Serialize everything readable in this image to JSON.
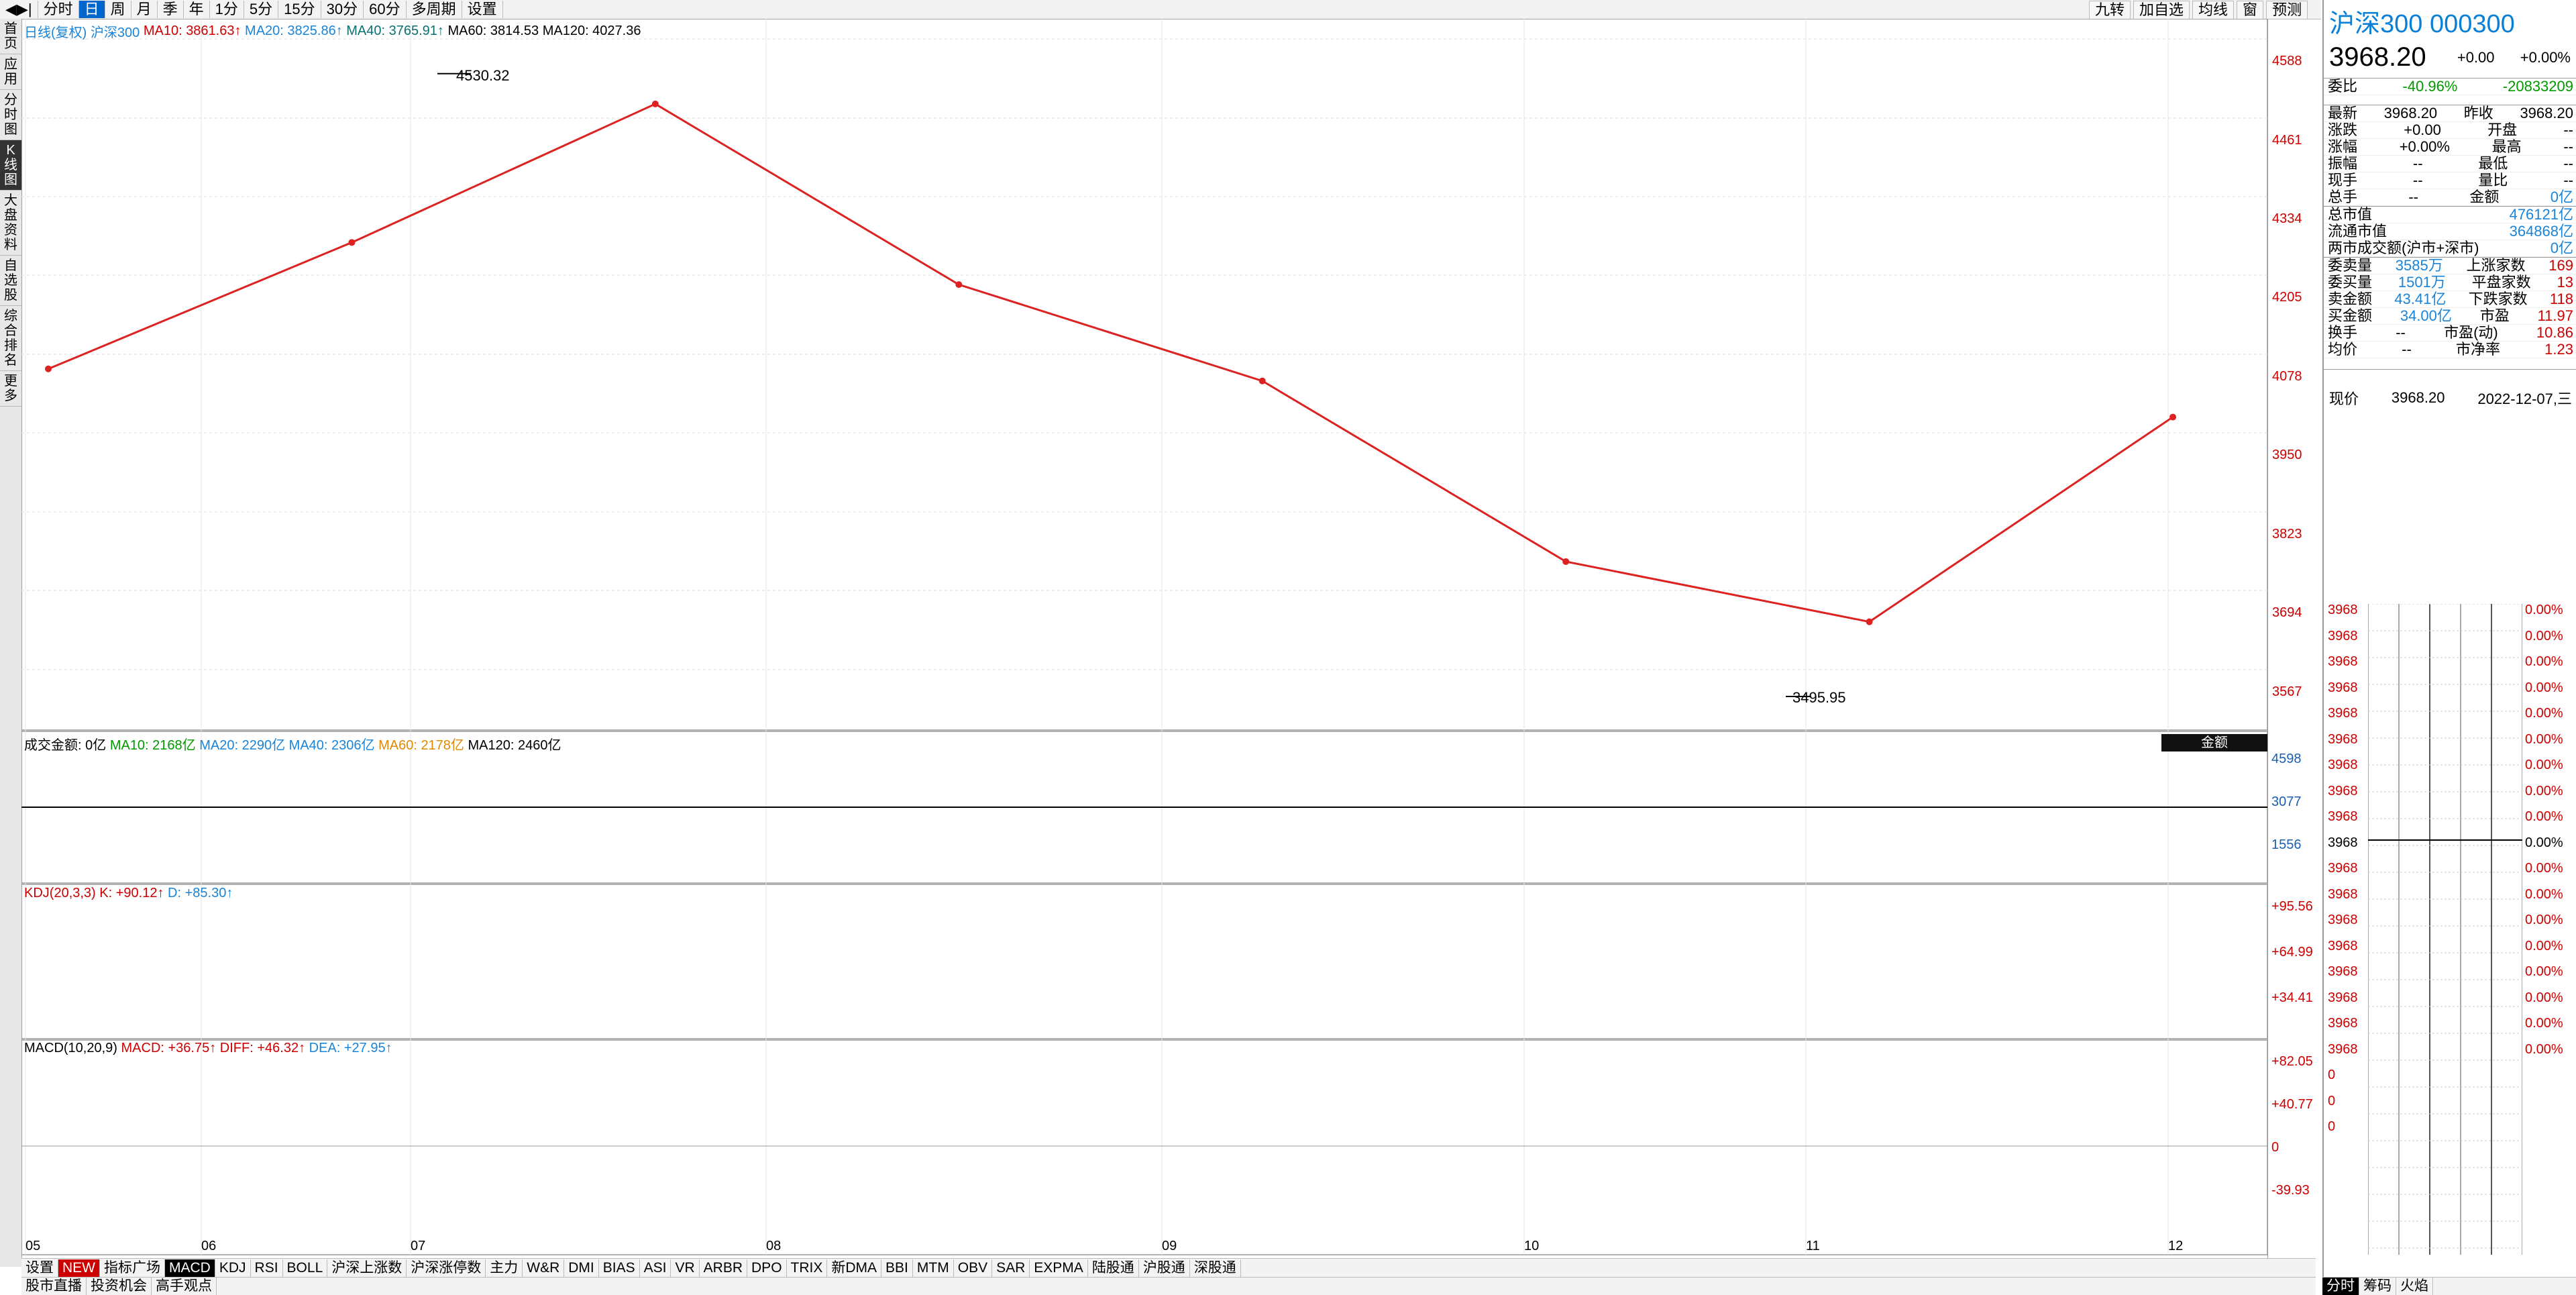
{
  "window": {
    "title": "沪深300 000300"
  },
  "top_toolbar": {
    "left": [
      "◀▶|",
      "分时",
      "日",
      "周",
      "月",
      "季",
      "年",
      "1分",
      "5分",
      "15分",
      "30分",
      "60分",
      "多周期",
      "设置"
    ],
    "active_index": 2,
    "right": [
      "九转",
      "加自选",
      "均线",
      "窗",
      "预测"
    ]
  },
  "left_nav": [
    "首页",
    "应用",
    "分时图",
    "K线图",
    "大盘资料",
    "自选股",
    "综合排名",
    "更多"
  ],
  "left_nav_active": 3,
  "main_chart": {
    "header": "日线(复权) 沪深300 MA10: 3861.63↑ MA20: 3825.86↑ MA40: 3765.91↑ MA60: 3814.53 MA120: 4027.36",
    "label_name": "日线(复权)",
    "label_code": "沪深300",
    "ma10": "MA10: 3861.63↑",
    "ma20": "MA20: 3825.86↑",
    "ma40": "MA40: 3765.91↑",
    "ma60": "MA60: 3814.53",
    "ma120": "MA120: 4027.36",
    "price_axis": [
      "4588",
      "4461",
      "4334",
      "4205",
      "4078",
      "3950",
      "3823",
      "3694",
      "3567"
    ],
    "high_label": "4530.32",
    "low_label": "3495.95",
    "date_labels": [
      "05",
      "06",
      "07",
      "08",
      "09",
      "10",
      "11",
      "12"
    ]
  },
  "chart_data": {
    "type": "candlestick",
    "x": [
      "05",
      "06",
      "07",
      "08",
      "09",
      "10",
      "11",
      "12"
    ],
    "close": [
      4040,
      4250,
      4480,
      4180,
      4020,
      3720,
      3620,
      3960
    ],
    "high_marked": 4530.32,
    "low_marked": 3495.95,
    "ylim": [
      3495.95,
      4588
    ],
    "note_sampled": true
  },
  "volume_panel": {
    "title": "成交金额: 0亿",
    "ma10": "MA10: 2168亿",
    "ma20": "MA20: 2290亿",
    "ma40": "MA40: 2306亿",
    "ma60": "MA60: 2178亿",
    "ma120": "MA120: 2460亿",
    "badge": "金额",
    "axis": [
      "4598",
      "3077",
      "1556"
    ]
  },
  "kdj_panel": {
    "title": "KDJ(20,3,3)",
    "k": "K: +90.12↑",
    "d": "D: +85.30↑",
    "axis": [
      "+95.56",
      "+64.99",
      "+34.41"
    ]
  },
  "macd_panel": {
    "title": "MACD(10,20,9)",
    "macd": "MACD: +36.75↑",
    "diff": "DIFF: +46.32↑",
    "dea": "DEA: +27.95↑",
    "axis": [
      "+82.05",
      "+40.77",
      "0",
      "-39.93"
    ]
  },
  "bottom_tabs": [
    "设置",
    "NEW",
    "指标广场",
    "MACD",
    "KDJ",
    "RSI",
    "BOLL",
    "沪深上涨数",
    "沪深涨停数",
    "主力",
    "W&R",
    "DMI",
    "BIAS",
    "ASI",
    "VR",
    "ARBR",
    "DPO",
    "TRIX",
    "新DMA",
    "BBI",
    "MTM",
    "OBV",
    "SAR",
    "EXPMA",
    "陆股通",
    "沪股通",
    "深股通"
  ],
  "bottom_tabs_active": 3,
  "bottom_bar2": [
    "股市直播",
    "投资机会",
    "高手观点"
  ],
  "right_panel": {
    "name": "沪深300 000300",
    "price": "3968.20",
    "chg": "+0.00",
    "chg_pct": "+0.00%",
    "weibi": {
      "label": "委比",
      "pct": "-40.96%",
      "val": "-20833209"
    },
    "rows": [
      [
        "最新",
        "3968.20",
        "昨收",
        "3968.20"
      ],
      [
        "涨跌",
        "+0.00",
        "开盘",
        "--"
      ],
      [
        "涨幅",
        "+0.00%",
        "最高",
        "--"
      ],
      [
        "振幅",
        "--",
        "最低",
        "--"
      ],
      [
        "现手",
        "--",
        "量比",
        "--"
      ],
      [
        "总手",
        "--",
        "金额",
        "0亿"
      ]
    ],
    "mcap": [
      [
        "总市值",
        "476121亿"
      ],
      [
        "流通市值",
        "364868亿"
      ],
      [
        "两市成交额(沪市+深市)",
        "0亿"
      ]
    ],
    "rows2": [
      [
        "委卖量",
        "3585万",
        "上涨家数",
        "169"
      ],
      [
        "委买量",
        "1501万",
        "平盘家数",
        "13"
      ],
      [
        "卖金额",
        "43.41亿",
        "下跌家数",
        "118"
      ],
      [
        "买金额",
        "34.00亿",
        "市盈",
        "11.97"
      ],
      [
        "换手",
        "--",
        "市盈(动)",
        "10.86"
      ],
      [
        "均价",
        "--",
        "市净率",
        "1.23"
      ]
    ],
    "now_label": "现价",
    "now_val": "3968.20",
    "now_date": "2022-12-07,三",
    "grid_left": "3968",
    "grid_right": "0.00%",
    "grid_left_low": "0",
    "tabs": [
      "分时",
      "筹码",
      "火焰"
    ]
  }
}
